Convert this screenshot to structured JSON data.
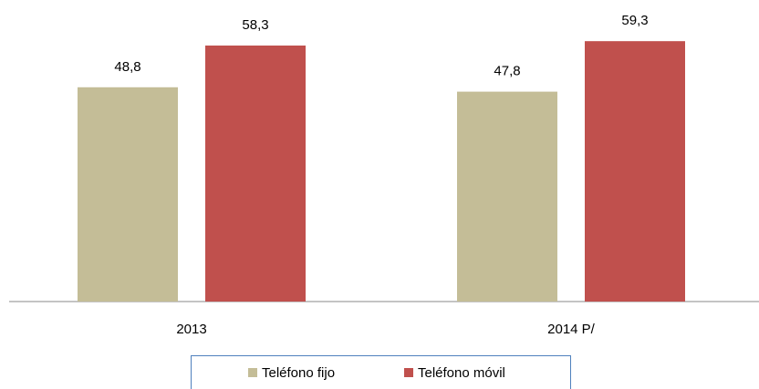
{
  "chart_data": {
    "type": "bar",
    "categories": [
      "2013",
      "2014 P/"
    ],
    "series": [
      {
        "name": "Teléfono fijo",
        "color": "#c4bd97",
        "values": [
          48.8,
          47.8
        ],
        "value_labels": [
          "48,8",
          "47,8"
        ]
      },
      {
        "name": "Teléfono móvil",
        "color": "#c0504d",
        "values": [
          58.3,
          59.3
        ],
        "value_labels": [
          "58,3",
          "59,3"
        ]
      }
    ],
    "legend": "bottom"
  }
}
